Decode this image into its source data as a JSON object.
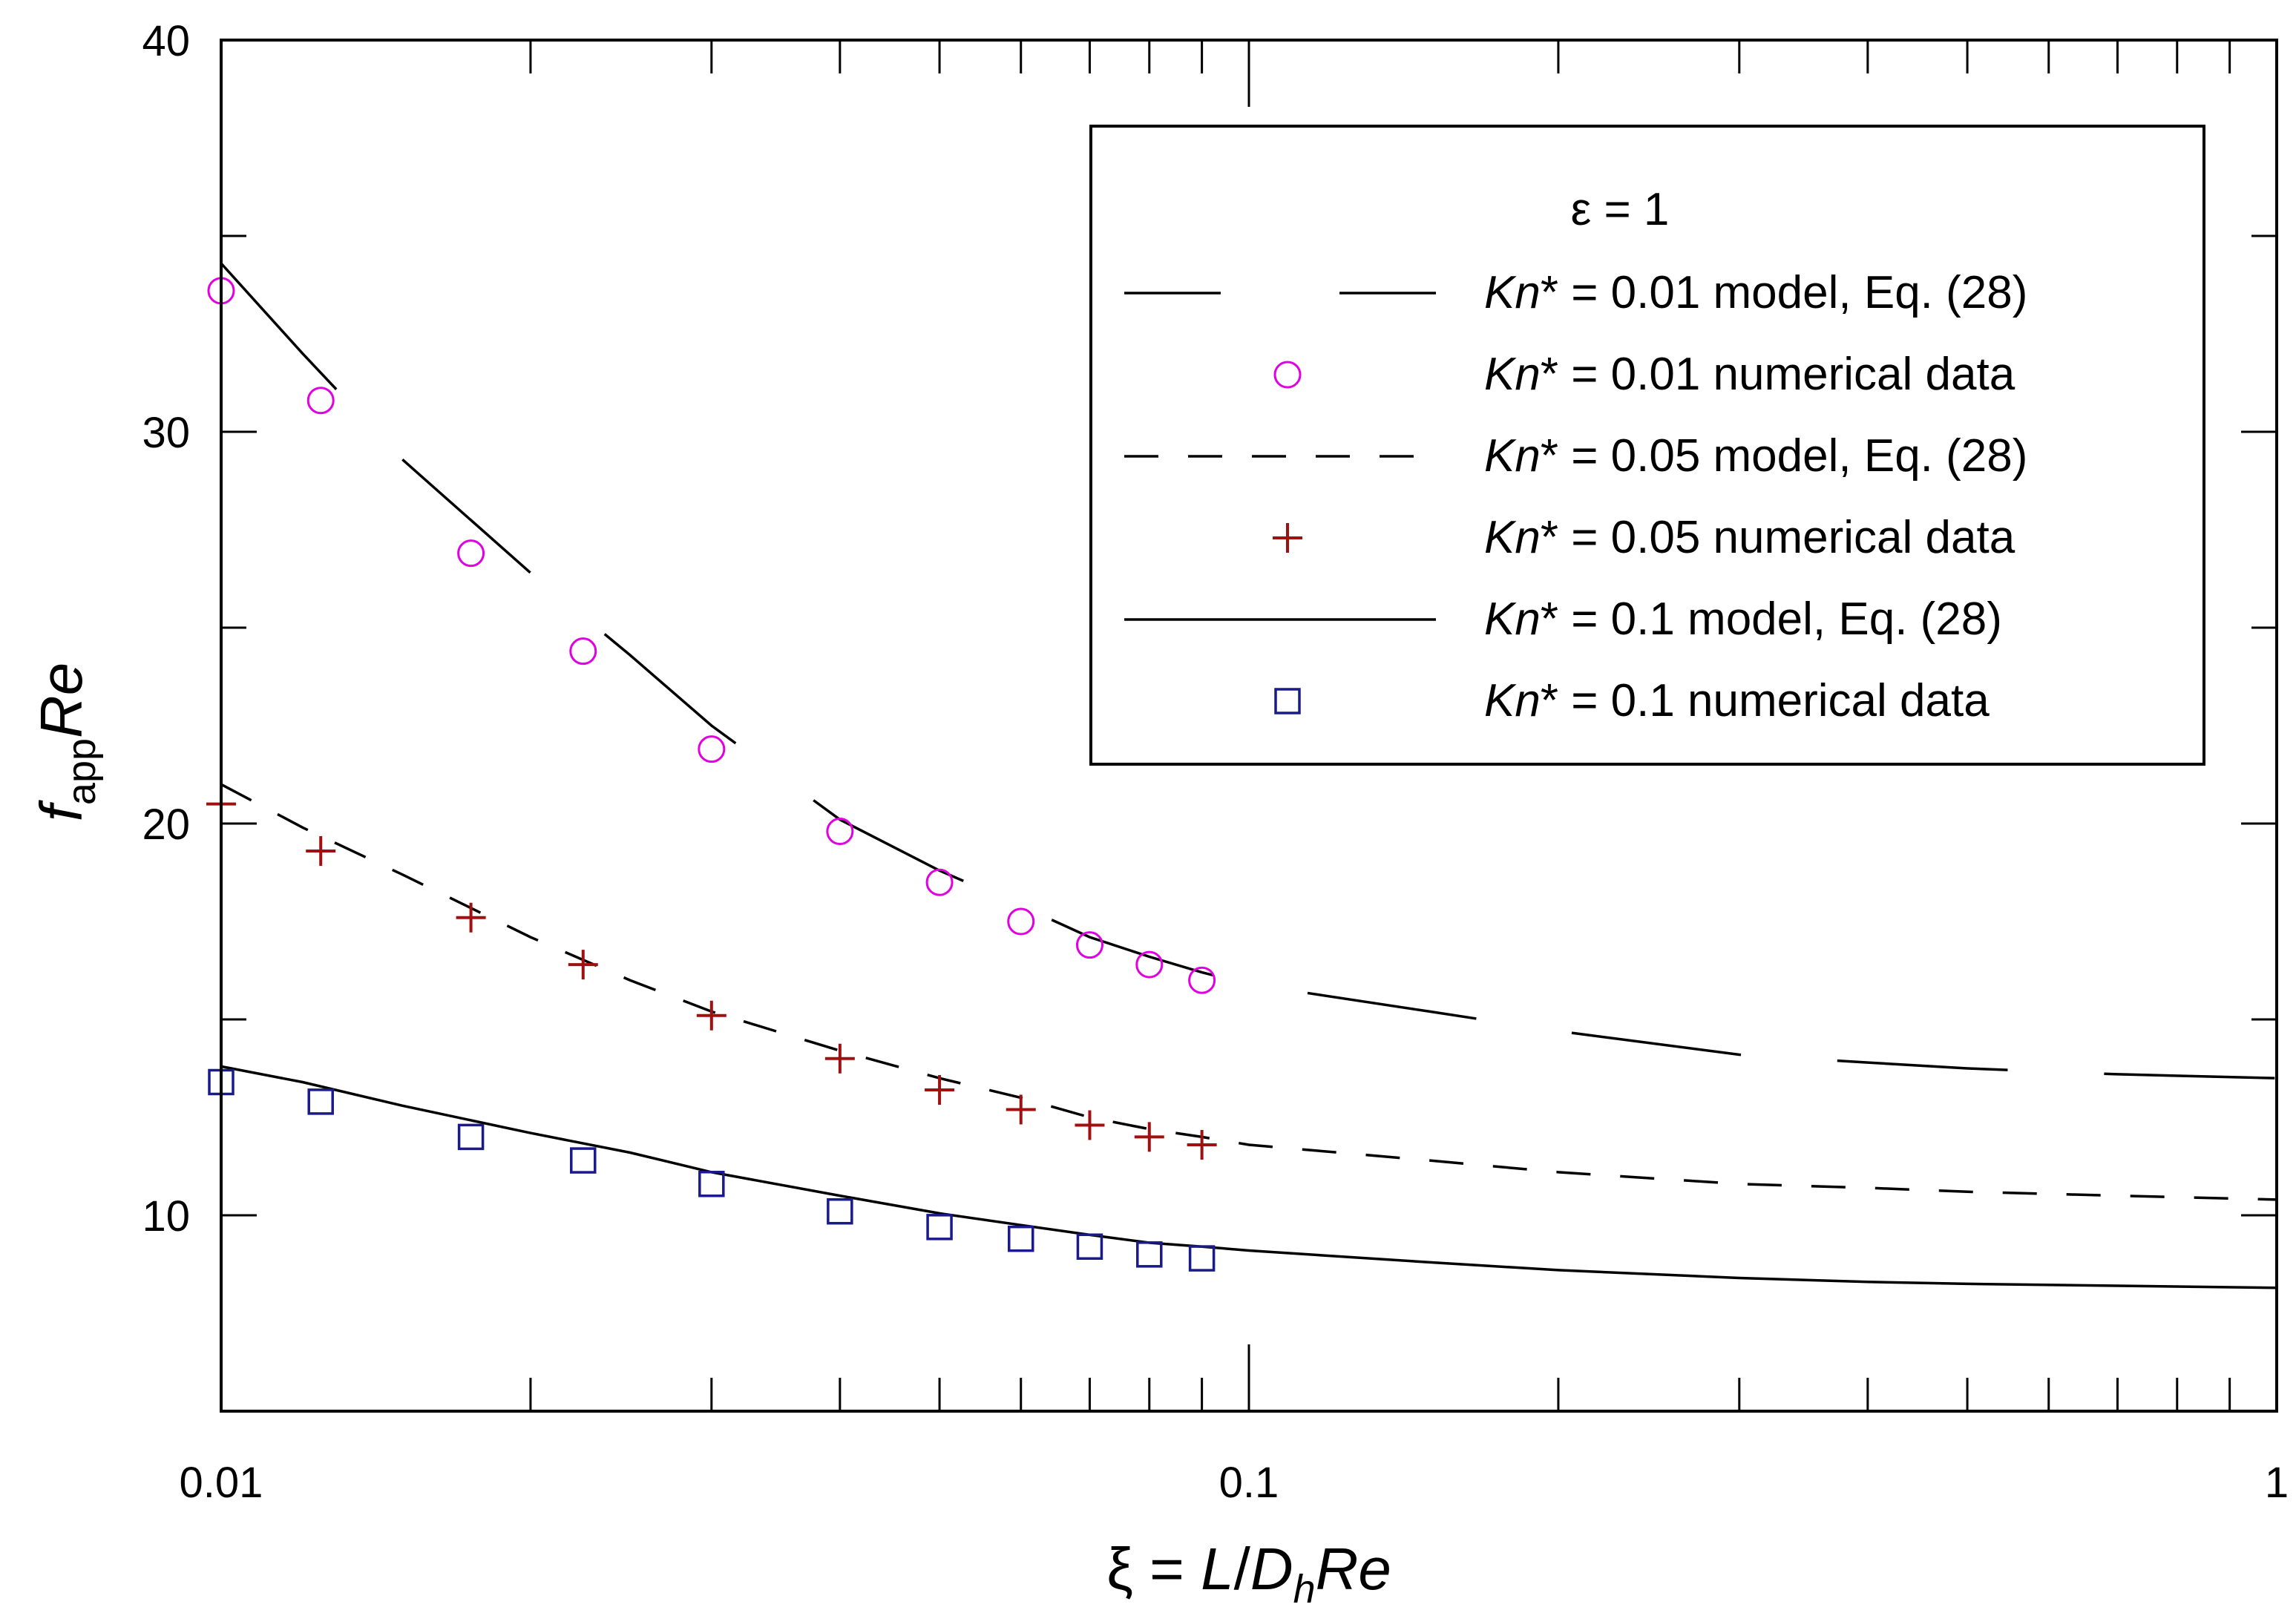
{
  "chart_data": {
    "type": "line",
    "x_scale": "log",
    "y_scale": "linear",
    "xlim": [
      0.01,
      1
    ],
    "ylim": [
      5,
      40
    ],
    "x_ticks": [
      0.01,
      0.1,
      1
    ],
    "x_tick_labels": [
      "0.01",
      "0.1",
      "1"
    ],
    "y_ticks": [
      10,
      20,
      30,
      40
    ],
    "y_tick_labels": [
      "10",
      "20",
      "30",
      "40"
    ],
    "xlabel": {
      "prefix": "ξ = ",
      "L": "L",
      "slash": "/",
      "D": "D",
      "h": "h",
      "Re": "Re"
    },
    "ylabel": {
      "f": "f",
      "sub": "app",
      "Re": "Re"
    },
    "legend": {
      "title": "ε = 1",
      "position": "top-right",
      "entries": [
        {
          "kn": "Kn",
          "text": "* = 0.01 model, Eq. (28)"
        },
        {
          "kn": "Kn",
          "text": "* = 0.01 numerical data"
        },
        {
          "kn": "Kn",
          "text": "* = 0.05 model, Eq. (28)"
        },
        {
          "kn": "Kn",
          "text": "* = 0.05 numerical data"
        },
        {
          "kn": "Kn",
          "text": "* = 0.1 model, Eq. (28)"
        },
        {
          "kn": "Kn",
          "text": "* = 0.1 numerical data"
        }
      ]
    },
    "series": [
      {
        "name": "Kn* = 0.01 model, Eq. (28)",
        "kind": "line",
        "style": "long-dash",
        "color": "#000000",
        "x": [
          0.01,
          0.012,
          0.015,
          0.02,
          0.025,
          0.03,
          0.04,
          0.05,
          0.06,
          0.07,
          0.08,
          0.09,
          0.1,
          0.15,
          0.2,
          0.3,
          0.4,
          0.5,
          0.7,
          1.0
        ],
        "y": [
          34.3,
          32.0,
          29.3,
          26.4,
          24.3,
          22.5,
          20.1,
          18.8,
          17.9,
          17.1,
          16.6,
          16.2,
          15.9,
          15.2,
          14.7,
          14.1,
          13.9,
          13.75,
          13.6,
          13.5
        ]
      },
      {
        "name": "Kn* = 0.01 numerical data",
        "kind": "marker",
        "marker": "circle",
        "color": "#e000e0",
        "x": [
          0.01,
          0.0125,
          0.0175,
          0.0225,
          0.03,
          0.04,
          0.05,
          0.06,
          0.07,
          0.08,
          0.09
        ],
        "y": [
          33.6,
          30.8,
          26.9,
          24.4,
          21.9,
          19.8,
          18.5,
          17.5,
          16.9,
          16.4,
          16.0
        ]
      },
      {
        "name": "Kn* = 0.05 model, Eq. (28)",
        "kind": "line",
        "style": "short-dash",
        "color": "#000000",
        "x": [
          0.01,
          0.012,
          0.015,
          0.02,
          0.025,
          0.03,
          0.04,
          0.05,
          0.06,
          0.07,
          0.08,
          0.09,
          0.1,
          0.15,
          0.2,
          0.3,
          0.4,
          0.5,
          0.7,
          1.0
        ],
        "y": [
          21.0,
          19.9,
          18.7,
          17.1,
          16.0,
          15.2,
          14.2,
          13.5,
          13.0,
          12.5,
          12.2,
          12.0,
          11.8,
          11.4,
          11.1,
          10.8,
          10.7,
          10.6,
          10.5,
          10.4
        ]
      },
      {
        "name": "Kn* = 0.05 numerical data",
        "kind": "marker",
        "marker": "plus",
        "color": "#a01010",
        "x": [
          0.01,
          0.0125,
          0.0175,
          0.0225,
          0.03,
          0.04,
          0.05,
          0.06,
          0.07,
          0.08,
          0.09
        ],
        "y": [
          20.5,
          19.3,
          17.6,
          16.4,
          15.1,
          14.0,
          13.2,
          12.7,
          12.3,
          12.0,
          11.8
        ]
      },
      {
        "name": "Kn* = 0.1 model, Eq. (28)",
        "kind": "line",
        "style": "solid",
        "color": "#000000",
        "x": [
          0.01,
          0.012,
          0.015,
          0.02,
          0.025,
          0.03,
          0.04,
          0.05,
          0.06,
          0.07,
          0.08,
          0.09,
          0.1,
          0.15,
          0.2,
          0.3,
          0.4,
          0.5,
          0.7,
          1.0
        ],
        "y": [
          13.8,
          13.4,
          12.8,
          12.1,
          11.6,
          11.1,
          10.5,
          10.05,
          9.75,
          9.5,
          9.3,
          9.2,
          9.1,
          8.8,
          8.6,
          8.4,
          8.3,
          8.25,
          8.2,
          8.15
        ]
      },
      {
        "name": "Kn* = 0.1 numerical data",
        "kind": "marker",
        "marker": "square",
        "color": "#1a1a8c",
        "x": [
          0.01,
          0.0125,
          0.0175,
          0.0225,
          0.03,
          0.04,
          0.05,
          0.06,
          0.07,
          0.08,
          0.09
        ],
        "y": [
          13.4,
          12.9,
          12.0,
          11.4,
          10.8,
          10.1,
          9.7,
          9.4,
          9.2,
          9.0,
          8.9
        ]
      }
    ]
  }
}
